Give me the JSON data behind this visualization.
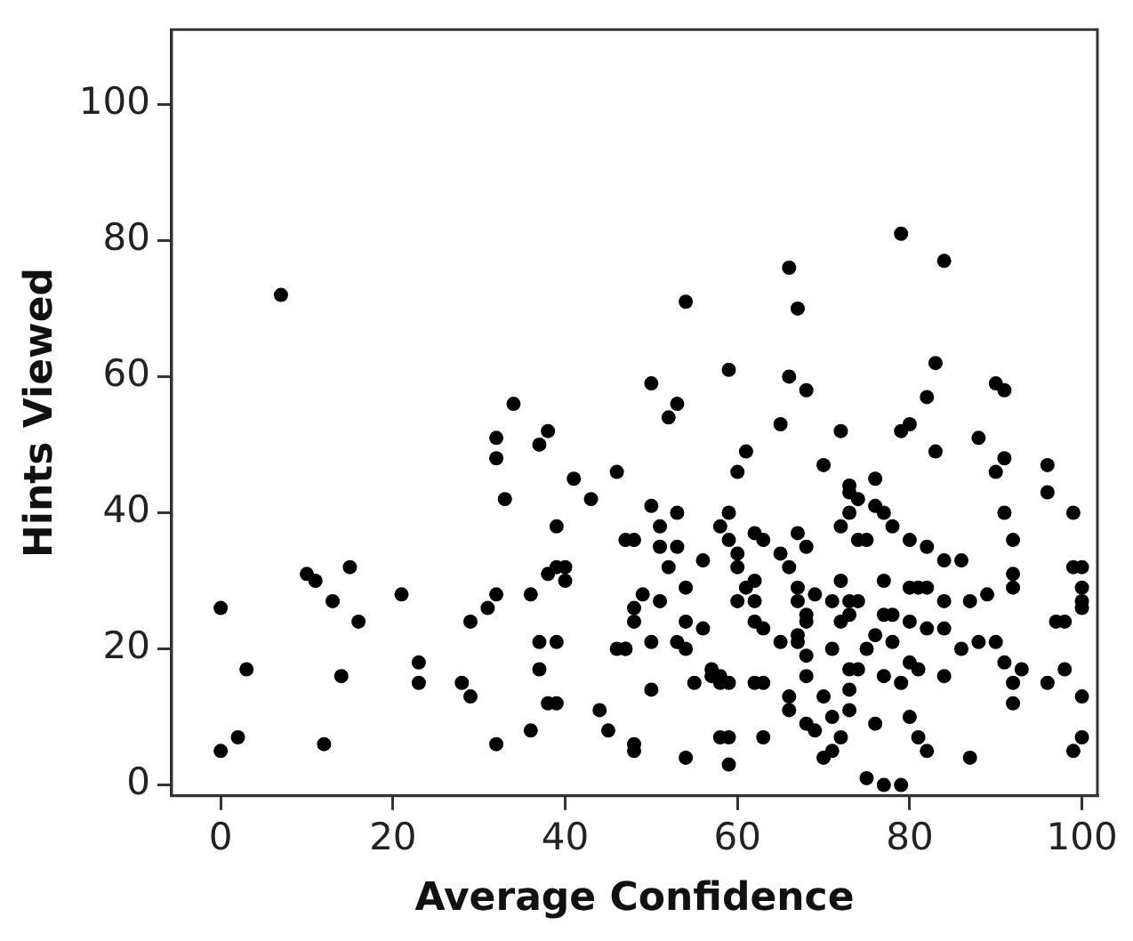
{
  "chart_data": {
    "type": "scatter",
    "xlabel": "Average Confidence",
    "ylabel": "Hints Viewed",
    "xlim": [
      -5.7,
      101.8
    ],
    "ylim": [
      -1.6,
      111
    ],
    "xticks": [
      0,
      20,
      40,
      60,
      80,
      100
    ],
    "yticks": [
      0,
      20,
      40,
      60,
      80,
      100
    ],
    "grid": false,
    "legend": false,
    "marker": "circle",
    "series": [
      {
        "color": "#000000",
        "x": [
          7,
          0,
          3,
          0,
          2,
          12,
          14,
          10,
          11,
          15,
          13,
          16,
          21,
          23,
          23,
          28,
          29,
          29,
          31,
          32,
          32,
          32,
          32,
          33,
          34,
          36,
          36,
          37,
          37,
          39,
          38,
          39,
          37,
          38,
          38,
          39,
          40,
          40,
          39,
          41,
          43,
          46,
          47,
          44,
          45,
          46,
          47,
          48,
          79,
          84,
          66,
          67,
          54,
          83,
          82,
          83,
          88,
          90,
          91,
          91,
          90,
          96,
          96,
          50,
          53,
          52,
          59,
          61,
          60,
          66,
          68,
          65,
          72,
          70,
          79,
          80,
          73,
          73,
          76,
          76,
          77,
          50,
          53,
          59,
          58,
          48,
          51,
          51,
          53,
          52,
          56,
          59,
          60,
          60,
          62,
          63,
          65,
          66,
          67,
          68,
          72,
          73,
          74,
          75,
          74,
          78,
          80,
          82,
          84,
          86,
          91,
          92,
          92,
          92,
          99,
          99,
          100,
          100,
          100,
          100,
          97,
          98,
          100,
          100,
          99,
          98,
          96,
          93,
          92,
          92,
          90,
          91,
          87,
          89,
          86,
          88,
          84,
          87,
          84,
          82,
          84,
          80,
          81,
          79,
          77,
          80,
          81,
          82,
          75,
          77,
          79,
          76,
          78,
          80,
          78,
          77,
          73,
          74,
          73,
          73,
          75,
          72,
          73,
          71,
          72,
          71,
          72,
          71,
          70,
          71,
          70,
          68,
          69,
          66,
          66,
          68,
          68,
          68,
          67,
          67,
          67,
          69,
          63,
          65,
          62,
          62,
          63,
          63,
          58,
          59,
          59,
          58,
          58,
          57,
          59,
          54,
          55,
          50,
          57,
          56,
          54,
          53,
          50,
          47,
          48,
          49,
          48,
          51,
          54,
          48,
          54,
          60,
          62,
          61,
          62,
          67,
          68,
          76,
          77,
          80,
          81,
          82,
          73,
          74
        ],
        "values": [
          72,
          26,
          17,
          5,
          7,
          6,
          16,
          31,
          30,
          32,
          27,
          24,
          28,
          18,
          15,
          15,
          13,
          24,
          26,
          28,
          6,
          51,
          48,
          42,
          56,
          8,
          28,
          17,
          21,
          21,
          12,
          12,
          50,
          52,
          31,
          32,
          32,
          30,
          38,
          45,
          42,
          46,
          36,
          11,
          8,
          20,
          20,
          6,
          81,
          77,
          76,
          70,
          71,
          62,
          57,
          49,
          51,
          59,
          58,
          48,
          46,
          47,
          43,
          59,
          56,
          54,
          61,
          49,
          46,
          60,
          58,
          53,
          52,
          47,
          52,
          53,
          44,
          43,
          45,
          41,
          40,
          41,
          40,
          40,
          38,
          36,
          38,
          35,
          35,
          32,
          33,
          36,
          34,
          32,
          37,
          36,
          34,
          32,
          37,
          35,
          38,
          40,
          42,
          36,
          36,
          38,
          36,
          35,
          33,
          33,
          40,
          36,
          31,
          29,
          40,
          32,
          32,
          29,
          27,
          26,
          24,
          24,
          13,
          7,
          5,
          17,
          15,
          17,
          15,
          12,
          21,
          18,
          27,
          28,
          20,
          21,
          16,
          4,
          27,
          23,
          23,
          18,
          17,
          15,
          16,
          10,
          7,
          5,
          1,
          0,
          0,
          9,
          21,
          24,
          25,
          30,
          17,
          17,
          14,
          11,
          20,
          24,
          25,
          27,
          30,
          20,
          7,
          5,
          4,
          10,
          13,
          9,
          8,
          11,
          13,
          16,
          19,
          25,
          22,
          21,
          29,
          28,
          23,
          21,
          24,
          15,
          15,
          7,
          7,
          7,
          3,
          16,
          15,
          17,
          15,
          20,
          15,
          14,
          16,
          23,
          24,
          21,
          21,
          20,
          26,
          28,
          24,
          27,
          29,
          5,
          4,
          27,
          27,
          29,
          30,
          27,
          24,
          22,
          25,
          29,
          29,
          29,
          27,
          27
        ]
      }
    ]
  }
}
